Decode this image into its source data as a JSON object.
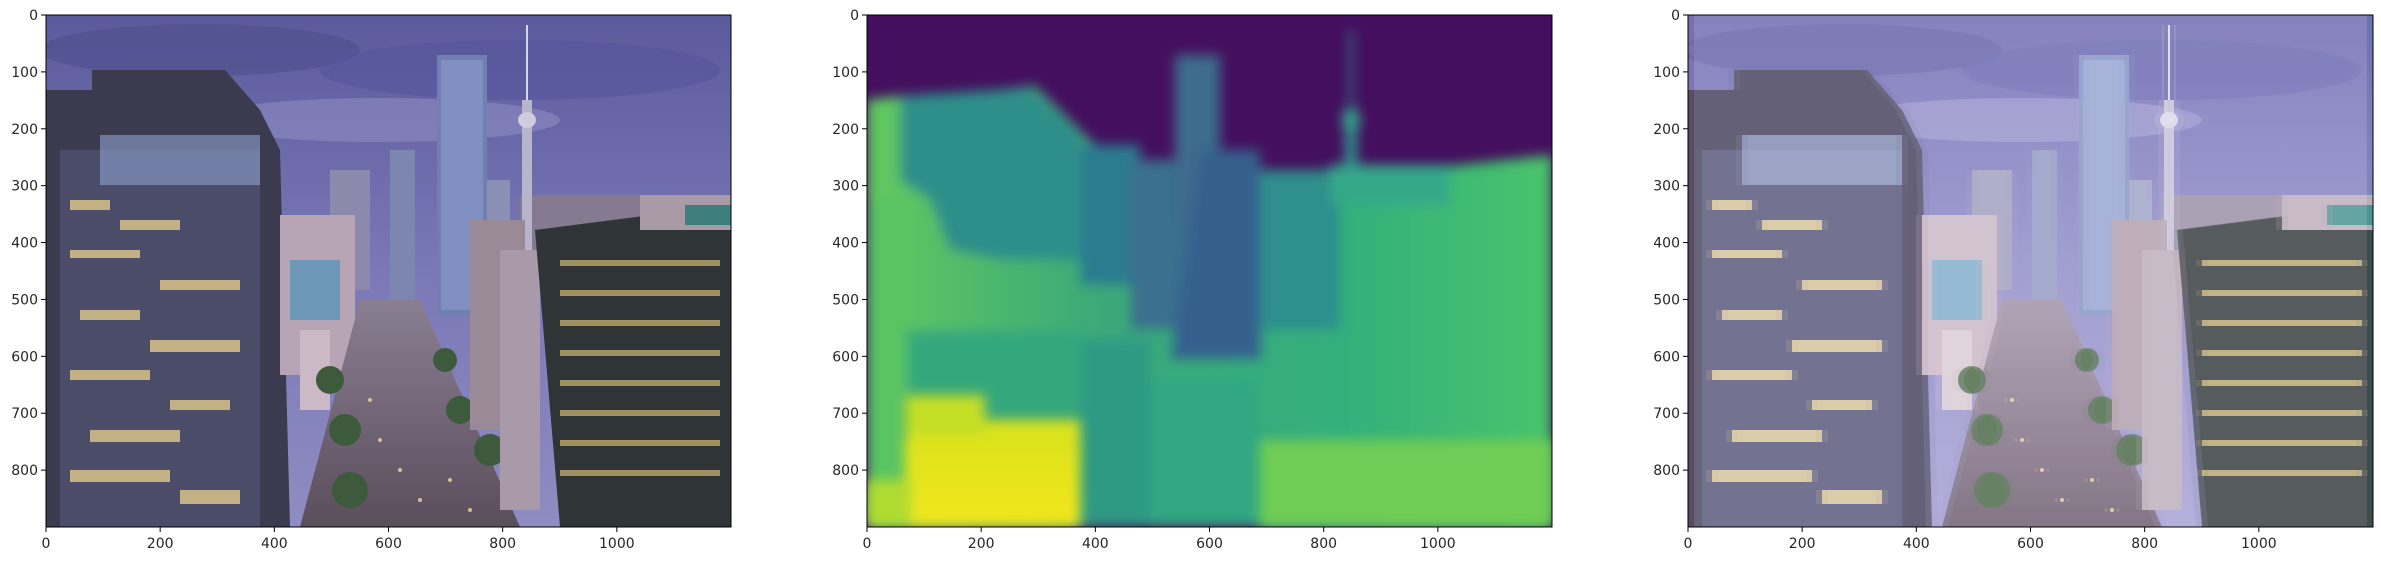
{
  "chart_data": [
    {
      "type": "heatmap",
      "content": "RGB photograph of a city street with skyscrapers and a TV tower under a cloudy purple sky",
      "xlim": [
        0,
        1200
      ],
      "ylim": [
        900,
        0
      ],
      "x_ticks": [
        0,
        200,
        400,
        600,
        800,
        1000
      ],
      "y_ticks": [
        0,
        100,
        200,
        300,
        400,
        500,
        600,
        700,
        800
      ],
      "colors": {
        "sky": "#6a68a8",
        "buildings": "#5a5870",
        "windows": "#d8c48a",
        "street": "#6e6470"
      }
    },
    {
      "type": "heatmap",
      "content": "Depth map rendered with viridis colormap",
      "colormap": "viridis",
      "xlim": [
        0,
        1200
      ],
      "ylim": [
        900,
        0
      ],
      "x_ticks": [
        0,
        200,
        400,
        600,
        800,
        1000
      ],
      "y_ticks": [
        0,
        100,
        200,
        300,
        400,
        500,
        600,
        700,
        800
      ],
      "colors": {
        "far": "#440f5e",
        "mid": "#2f7b8e",
        "near": "#3cbb75",
        "nearest": "#f1e51d"
      }
    },
    {
      "type": "heatmap",
      "content": "Red/cyan anaglyph version of the photograph",
      "xlim": [
        0,
        1200
      ],
      "ylim": [
        900,
        0
      ],
      "x_ticks": [
        0,
        200,
        400,
        600,
        800,
        1000
      ],
      "y_ticks": [
        0,
        100,
        200,
        300,
        400,
        500,
        600,
        700,
        800
      ],
      "colors": {
        "red_shift": "#c0404a",
        "cyan_shift": "#40b8c0"
      }
    }
  ]
}
